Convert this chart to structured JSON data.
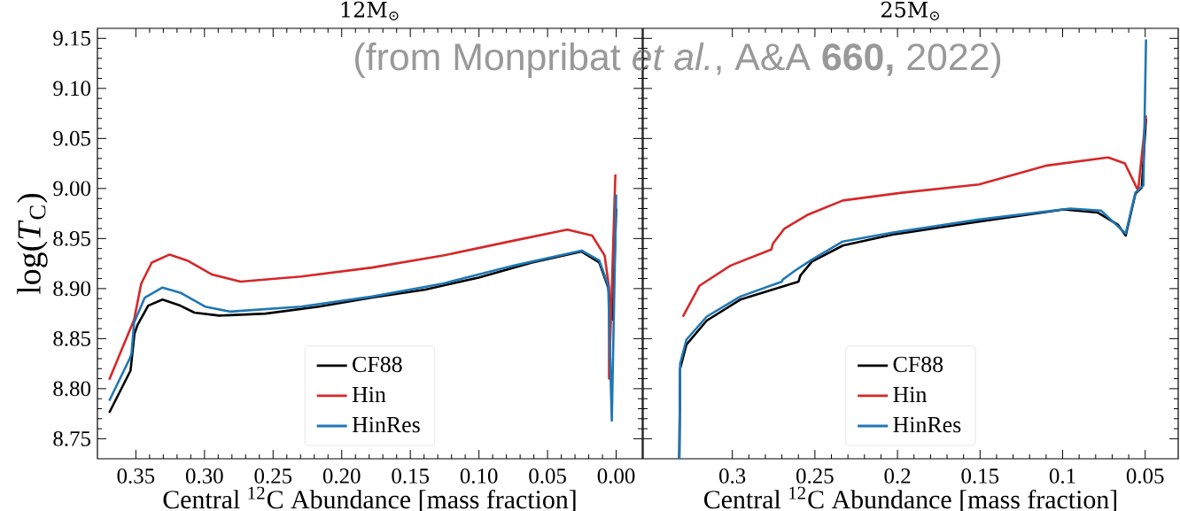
{
  "chart_data": [
    {
      "type": "line",
      "title": "12M$_{⊙}$",
      "xlabel": "Central $^{12}$C Abundance [mass fraction]",
      "ylabel": "log(*T*$_{C}$)",
      "annotations": [
        "(from Monpribat *et al.*, A&A **660,** 2022)"
      ],
      "xlim": [
        0.378,
        -0.019
      ],
      "ylim": [
        8.73,
        9.16
      ],
      "xticks": [
        0.35,
        {
          "value": 0.3,
          "label": "0.30"
        },
        0.25,
        {
          "value": 0.2,
          "label": "0.20"
        },
        0.15,
        {
          "value": 0.1,
          "label": "0.10"
        },
        0.05,
        {
          "value": 0,
          "label": "0.00"
        }
      ],
      "yticks": [
        8.75,
        {
          "value": 8.8,
          "label": "8.80"
        },
        8.85,
        {
          "value": 8.9,
          "label": "8.90"
        },
        8.95,
        {
          "value": 9.0,
          "label": "9.00"
        },
        9.05,
        {
          "value": 9.1,
          "label": "9.10"
        },
        9.15
      ],
      "legend": "bottom",
      "series": [
        {
          "name": "CF88",
          "color": "#000000",
          "x": [
            0.3694,
            0.3539,
            0.351,
            0.3487,
            0.341,
            0.3306,
            0.3177,
            0.3073,
            0.2892,
            0.2556,
            0.2167,
            0.1779,
            0.1391,
            0.1003,
            0.0614,
            0.0252,
            0.0123,
            0.0058,
            0.0026,
            0.0
          ],
          "values": [
            8.776,
            8.818,
            8.855,
            8.864,
            8.883,
            8.889,
            8.883,
            8.876,
            8.873,
            8.875,
            8.882,
            8.891,
            8.899,
            8.911,
            8.926,
            8.937,
            8.926,
            8.901,
            8.869,
            8.98
          ]
        },
        {
          "name": "Hin",
          "color": "#d62728",
          "x": [
            0.3694,
            0.3513,
            0.3461,
            0.3384,
            0.3254,
            0.3125,
            0.2944,
            0.2737,
            0.2297,
            0.1779,
            0.1262,
            0.0744,
            0.0356,
            0.0175,
            0.0084,
            0.0052,
            0.0052,
            0.0006
          ],
          "values": [
            8.809,
            8.869,
            8.905,
            8.926,
            8.934,
            8.928,
            8.914,
            8.907,
            8.912,
            8.921,
            8.933,
            8.948,
            8.959,
            8.953,
            8.933,
            8.901,
            8.81,
            9.014
          ]
        },
        {
          "name": "HinRes",
          "color": "#1f77b4",
          "x": [
            0.3694,
            0.3545,
            0.3532,
            0.3513,
            0.3435,
            0.3306,
            0.3177,
            0.2996,
            0.2814,
            0.2297,
            0.1779,
            0.1262,
            0.0744,
            0.0252,
            0.0123,
            0.0058,
            0.0032,
            0.0
          ],
          "values": [
            8.788,
            8.83,
            8.835,
            8.866,
            8.891,
            8.901,
            8.896,
            8.882,
            8.877,
            8.882,
            8.892,
            8.905,
            8.923,
            8.938,
            8.928,
            8.903,
            8.768,
            8.994
          ]
        }
      ]
    },
    {
      "type": "line",
      "title": "25M$_{⊙}$",
      "xlabel": "Central $^{12}$C Abundance [mass fraction]",
      "xlim": [
        0.354,
        0.03
      ],
      "ylim": [
        8.73,
        9.16
      ],
      "tick_labels": "x",
      "xticks": [
        0.3,
        0.25,
        0.2,
        0.15,
        0.1,
        0.05
      ],
      "yticks": [
        8.75,
        8.8,
        8.85,
        8.9,
        8.95,
        9.0,
        9.05,
        9.1,
        9.15
      ],
      "legend": "bottom",
      "series": [
        {
          "name": "CF88",
          "color": "#000000",
          "x": [
            0.3321,
            0.3316,
            0.3278,
            0.3155,
            0.2952,
            0.2599,
            0.2588,
            0.2518,
            0.2331,
            0.2026,
            0.1506,
            0.0993,
            0.0789,
            0.0666,
            0.0618,
            0.0559,
            0.0521,
            0.0495
          ],
          "values": [
            8.73,
            8.82,
            8.844,
            8.868,
            8.889,
            8.907,
            8.913,
            8.927,
            8.943,
            8.954,
            8.967,
            8.979,
            8.976,
            8.964,
            8.953,
            8.995,
            9.001,
            9.07
          ]
        },
        {
          "name": "Hin",
          "color": "#d62728",
          "x": [
            0.33,
            0.3198,
            0.3011,
            0.2764,
            0.2754,
            0.2684,
            0.254,
            0.2331,
            0.1961,
            0.1506,
            0.1094,
            0.0725,
            0.0623,
            0.0543,
            0.0495
          ],
          "values": [
            8.872,
            8.903,
            8.923,
            8.939,
            8.945,
            8.96,
            8.974,
            8.988,
            8.996,
            9.004,
            9.023,
            9.031,
            9.025,
            8.998,
            9.073
          ]
        },
        {
          "name": "HinRes",
          "color": "#1f77b4",
          "x": [
            0.3321,
            0.3316,
            0.3278,
            0.3155,
            0.2952,
            0.27,
            0.2695,
            0.262,
            0.2518,
            0.2331,
            0.2026,
            0.1506,
            0.0955,
            0.0768,
            0.0618,
            0.0559,
            0.0511,
            0.0495
          ],
          "values": [
            8.73,
            8.825,
            8.849,
            8.872,
            8.892,
            8.907,
            8.909,
            8.918,
            8.929,
            8.947,
            8.956,
            8.969,
            8.98,
            8.978,
            8.955,
            8.996,
            9.003,
            9.149
          ]
        }
      ]
    }
  ]
}
